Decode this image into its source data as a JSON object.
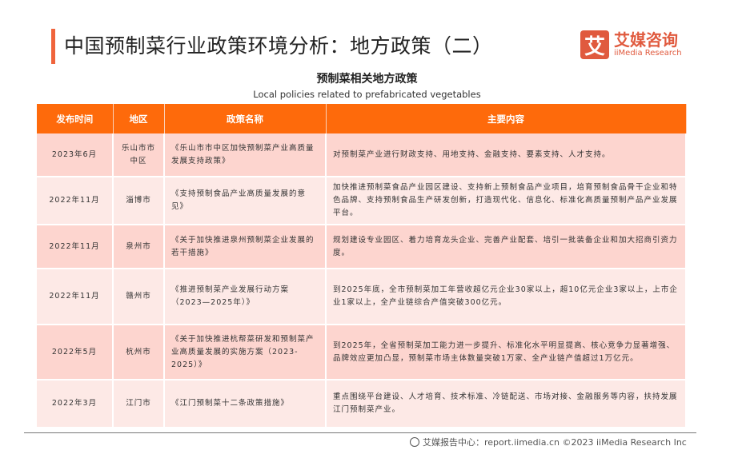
{
  "header": {
    "title": "中国预制菜行业政策环境分析：地方政策（二）",
    "logo_cn": "艾媒咨询",
    "logo_en": "iiMedia Research",
    "logo_mark": "艾"
  },
  "subtitle": "预制菜相关地方政策",
  "subtitle_en": "Local policies related to prefabricated vegetables",
  "table": {
    "columns": [
      "发布时间",
      "地区",
      "政策名称",
      "主要内容"
    ],
    "rows": [
      {
        "date": "2023年6月",
        "region": "乐山市市中区",
        "policy": "《乐山市市中区加快预制菜产业高质量发展支持政策》",
        "content": "对预制菜产业进行财政支持、用地支持、金融支持、要素支持、人才支持。"
      },
      {
        "date": "2022年11月",
        "region": "淄博市",
        "policy": "《支持预制食品产业高质量发展的意见》",
        "content": "加快推进预制菜食品产业园区建设、支持新上预制食品产业项目，培育预制食品骨干企业和特色品牌、支持预制食品生产研发创新，打造现代化、信息化、标准化高质量预制产品产业发展平台。"
      },
      {
        "date": "2022年11月",
        "region": "泉州市",
        "policy": "《关于加快推进泉州预制菜企业发展的若干措施》",
        "content": "规划建设专业园区、着力培育龙头企业、完善产业配套、培引一批装备企业和加大招商引资力度。"
      },
      {
        "date": "2022年11月",
        "region": "赣州市",
        "policy": "《推进预制菜产业发展行动方案（2023—2025年）》",
        "content": "到2025年底，全市预制菜加工年营收超亿元企业30家以上，超10亿元企业3家以上，上市企业1家以上，全产业链综合产值突破300亿元。"
      },
      {
        "date": "2022年5月",
        "region": "杭州市",
        "policy": "《关于加快推进杭帮菜研发和预制菜产业高质量发展的实施方案（2023-2025）》",
        "content": "到2025年，全省预制菜加工能力进一步提升、标准化水平明显提高、核心竞争力显著增强、品牌效应更加凸显，预制菜市场主体数量突破1万家、全产业链产值超过1万亿元。"
      },
      {
        "date": "2022年3月",
        "region": "江门市",
        "policy": "《江门预制菜十二条政策措施》",
        "content": "重点围绕平台建设、人才培育、技术标准、冷链配送、市场对接、金融服务等内容，扶持发展江门预制菜产业。"
      }
    ]
  },
  "footer": {
    "text": "艾媒报告中心：report.iimedia.cn  ©2023  iiMedia Research  Inc",
    "icon": "globe-icon"
  },
  "colors": {
    "accent": "#fe6a0b",
    "brand": "#e05a3e",
    "row_dark": "#fdd5cf",
    "row_light": "#fde9e6"
  }
}
